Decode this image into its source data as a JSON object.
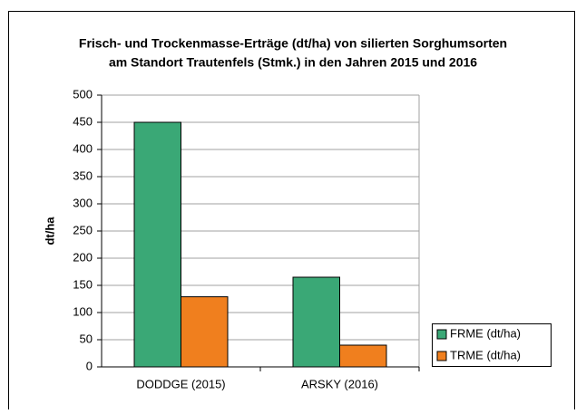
{
  "chart_data": {
    "type": "bar",
    "title": [
      "Frisch- und Trockenmasse-Erträge (dt/ha) von silierten Sorghumsorten",
      "am Standort Trautenfels (Stmk.) in den Jahren 2015 und 2016"
    ],
    "y_label": "dt/ha",
    "categories": [
      "DODDGE (2015)",
      "ARSKY (2016)"
    ],
    "series": [
      {
        "name": "FRME (dt/ha)",
        "color": "#3aa876",
        "values": [
          450,
          165
        ]
      },
      {
        "name": "TRME (dt/ha)",
        "color": "#f07f1e",
        "values": [
          129,
          40
        ]
      }
    ],
    "ylim": [
      0,
      500
    ],
    "yticks": [
      0,
      50,
      100,
      150,
      200,
      250,
      300,
      350,
      400,
      450,
      500
    ],
    "grid": true,
    "legend": "right"
  }
}
